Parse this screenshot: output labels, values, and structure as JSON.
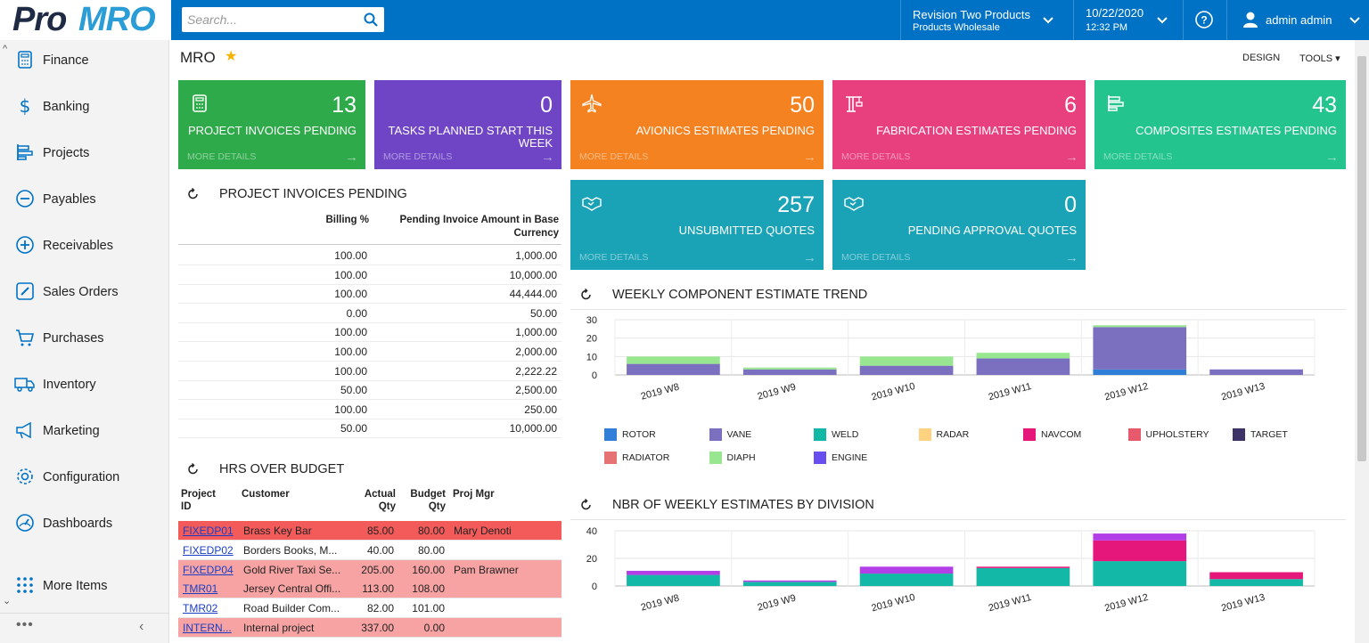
{
  "logo": {
    "pro": "Pro",
    "mro": "MRO"
  },
  "search": {
    "placeholder": "Search..."
  },
  "tenant": {
    "name": "Revision Two Products",
    "branch": "Products Wholesale"
  },
  "datetime": {
    "date": "10/22/2020",
    "time": "12:32 PM"
  },
  "user": {
    "name": "admin admin"
  },
  "sidebar": {
    "items": [
      {
        "label": "Finance",
        "icon": "calculator-icon"
      },
      {
        "label": "Banking",
        "icon": "dollar-icon"
      },
      {
        "label": "Projects",
        "icon": "projects-icon"
      },
      {
        "label": "Payables",
        "icon": "minus-circle-icon"
      },
      {
        "label": "Receivables",
        "icon": "plus-circle-icon"
      },
      {
        "label": "Sales Orders",
        "icon": "pencil-square-icon"
      },
      {
        "label": "Purchases",
        "icon": "cart-icon"
      },
      {
        "label": "Inventory",
        "icon": "truck-icon"
      },
      {
        "label": "Marketing",
        "icon": "megaphone-icon"
      },
      {
        "label": "Configuration",
        "icon": "gear-icon"
      },
      {
        "label": "Dashboards",
        "icon": "gauge-icon"
      },
      {
        "label": "More Items",
        "icon": "grid-dots-icon"
      }
    ]
  },
  "page": {
    "title": "MRO",
    "design": "DESIGN",
    "tools": "TOOLS"
  },
  "tiles": [
    {
      "value": "13",
      "title": "PROJECT INVOICES PENDING",
      "more": "MORE DETAILS",
      "color": "#2eaa4a",
      "icon": "calculator-icon"
    },
    {
      "value": "0",
      "title": "TASKS PLANNED START THIS WEEK",
      "more": "MORE DETAILS",
      "color": "#6f45c6",
      "icon": ""
    },
    {
      "value": "50",
      "title": "AVIONICS ESTIMATES PENDING",
      "more": "MORE DETAILS",
      "color": "#f58220",
      "icon": "airplane-icon"
    },
    {
      "value": "6",
      "title": "FABRICATION ESTIMATES PENDING",
      "more": "MORE DETAILS",
      "color": "#e8407f",
      "icon": "crane-icon"
    },
    {
      "value": "43",
      "title": "COMPOSITES ESTIMATES PENDING",
      "more": "MORE DETAILS",
      "color": "#23c48e",
      "icon": "projects-icon"
    },
    {
      "value": "257",
      "title": "UNSUBMITTED QUOTES",
      "more": "MORE DETAILS",
      "color": "#1aa3b7",
      "icon": "handshake-icon"
    },
    {
      "value": "0",
      "title": "PENDING APPROVAL QUOTES",
      "more": "MORE DETAILS",
      "color": "#1aa3b7",
      "icon": "handshake-icon"
    }
  ],
  "invoices": {
    "title": "PROJECT INVOICES PENDING",
    "headers": [
      "Billing %",
      "Pending Invoice Amount in Base",
      "Currency"
    ],
    "rows": [
      [
        "100.00",
        "1,000.00"
      ],
      [
        "100.00",
        "10,000.00"
      ],
      [
        "100.00",
        "44,444.00"
      ],
      [
        "0.00",
        "50.00"
      ],
      [
        "100.00",
        "1,000.00"
      ],
      [
        "100.00",
        "2,000.00"
      ],
      [
        "100.00",
        "2,222.22"
      ],
      [
        "50.00",
        "2,500.00"
      ],
      [
        "100.00",
        "250.00"
      ],
      [
        "50.00",
        "10,000.00"
      ]
    ]
  },
  "hrs": {
    "title": "HRS OVER BUDGET",
    "headers": {
      "project1": "Project",
      "project2": "ID",
      "customer": "Customer",
      "actual1": "Actual",
      "actual2": "Qty",
      "budget1": "Budget",
      "budget2": "Qty",
      "mgr": "Proj Mgr"
    },
    "rows": [
      {
        "id": "FIXEDP01",
        "customer": "Brass Key Bar",
        "actual": "85.00",
        "budget": "80.00",
        "mgr": "Mary Denoti",
        "bg": "#f35b5b"
      },
      {
        "id": "FIXEDP02",
        "customer": "Borders Books, M...",
        "actual": "40.00",
        "budget": "80.00",
        "mgr": "",
        "bg": "#ffffff"
      },
      {
        "id": "FIXEDP04",
        "customer": "Gold River Taxi Se...",
        "actual": "205.00",
        "budget": "160.00",
        "mgr": "Pam Brawner",
        "bg": "#f8a3a3"
      },
      {
        "id": "TMR01",
        "customer": "Jersey Central Offi...",
        "actual": "113.00",
        "budget": "108.00",
        "mgr": "",
        "bg": "#f8a3a3"
      },
      {
        "id": "TMR02",
        "customer": "Road Builder Com...",
        "actual": "82.00",
        "budget": "101.00",
        "mgr": "",
        "bg": "#ffffff"
      },
      {
        "id": "INTERN...",
        "customer": "Internal project",
        "actual": "337.00",
        "budget": "0.00",
        "mgr": "",
        "bg": "#f8a3a3"
      }
    ]
  },
  "chart_data": [
    {
      "type": "bar",
      "title": "WEEKLY COMPONENT ESTIMATE TREND",
      "stacked": true,
      "categories": [
        "2019 W8",
        "2019 W9",
        "2019 W10",
        "2019 W11",
        "2019 W12",
        "2019 W13"
      ],
      "ylim": [
        0,
        30
      ],
      "yticks": [
        "0",
        "10",
        "20",
        "30"
      ],
      "series": [
        {
          "name": "ROTOR",
          "color": "#2f7ed8",
          "values": [
            0,
            0,
            0,
            0,
            3,
            0
          ]
        },
        {
          "name": "VANE",
          "color": "#7b6fc0",
          "values": [
            6,
            3,
            5,
            9,
            23,
            3
          ]
        },
        {
          "name": "WELD",
          "color": "#14b8a6",
          "values": [
            0,
            0,
            0,
            0,
            0,
            0
          ]
        },
        {
          "name": "RADAR",
          "color": "#ffd27f",
          "values": [
            0,
            0,
            0,
            0,
            0,
            0
          ]
        },
        {
          "name": "NAVCOM",
          "color": "#e6177a",
          "values": [
            0,
            0,
            0,
            0,
            0,
            0
          ]
        },
        {
          "name": "UPHOLSTERY",
          "color": "#e75a6d",
          "values": [
            0,
            0,
            0,
            0,
            0,
            0
          ]
        },
        {
          "name": "TARGET",
          "color": "#3d3366",
          "values": [
            0,
            0,
            0,
            0,
            0,
            0
          ]
        },
        {
          "name": "RADIATOR",
          "color": "#e57373",
          "values": [
            0,
            0,
            0,
            0,
            0,
            0
          ]
        },
        {
          "name": "DIAPH",
          "color": "#98e690",
          "values": [
            4,
            1,
            5,
            3,
            1,
            0
          ]
        },
        {
          "name": "ENGINE",
          "color": "#6a4ff0",
          "values": [
            0,
            0,
            0,
            0,
            0,
            0
          ]
        }
      ]
    },
    {
      "type": "bar",
      "title": "NBR OF WEEKLY ESTIMATES BY DIVISION",
      "stacked": true,
      "categories": [
        "2019 W8",
        "2019 W9",
        "2019 W10",
        "2019 W11",
        "2019 W12",
        "2019 W13"
      ],
      "ylim": [
        0,
        40
      ],
      "yticks": [
        "0",
        "20",
        "40"
      ],
      "series": [
        {
          "color": "#14b8a6",
          "values": [
            8,
            3,
            9,
            13,
            18,
            5
          ]
        },
        {
          "color": "#e6177a",
          "values": [
            0,
            0,
            0,
            1,
            15,
            5
          ]
        },
        {
          "color": "#b23ee8",
          "values": [
            3,
            1,
            5,
            0,
            5,
            0
          ]
        }
      ]
    }
  ],
  "colors": {
    "topbar": "#0072c6",
    "accent": "#2a9cd6"
  }
}
